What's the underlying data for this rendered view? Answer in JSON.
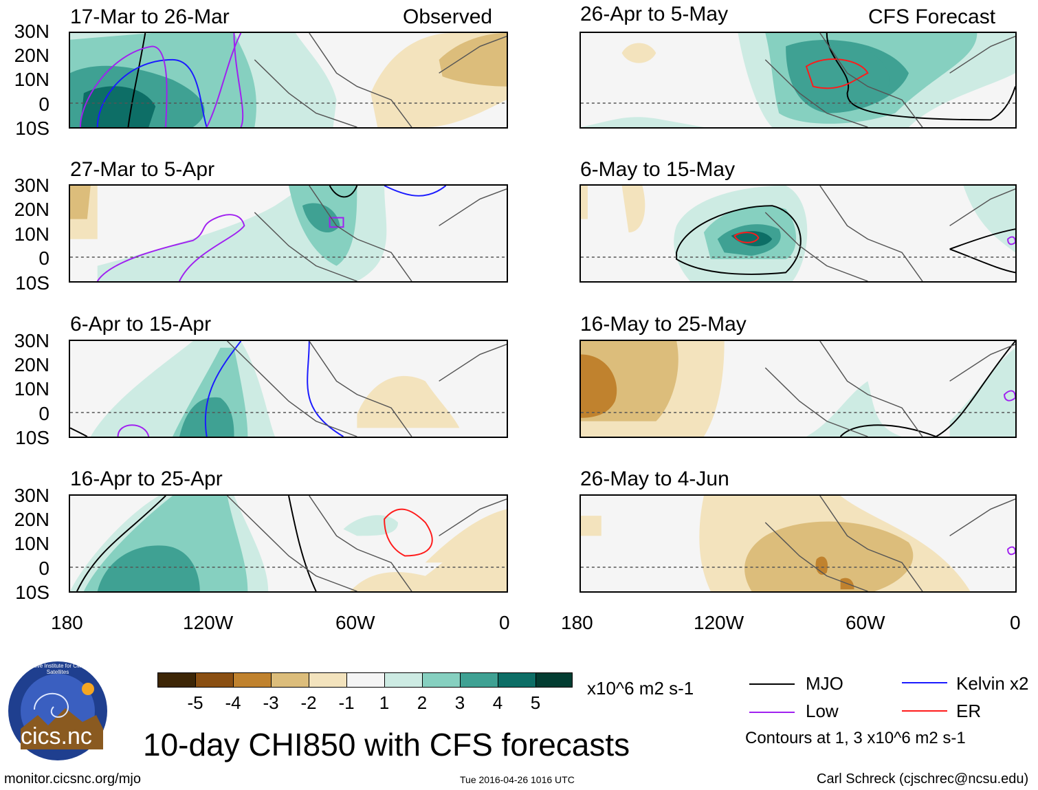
{
  "main_title": "10-day CHI850 with CFS forecasts",
  "observed_label": "Observed",
  "forecast_label": "CFS Forecast",
  "lat_labels": [
    "30N",
    "20N",
    "10N",
    "0",
    "10S"
  ],
  "lon_labels": [
    "180",
    "120W",
    "60W",
    "0"
  ],
  "panels_left": [
    {
      "title": "17-Mar to 26-Mar"
    },
    {
      "title": "27-Mar to 5-Apr"
    },
    {
      "title": "6-Apr to 15-Apr"
    },
    {
      "title": "16-Apr to 25-Apr"
    }
  ],
  "panels_right": [
    {
      "title": "26-Apr to 5-May"
    },
    {
      "title": "6-May to 15-May"
    },
    {
      "title": "16-May to 25-May"
    },
    {
      "title": "26-May to 4-Jun"
    }
  ],
  "colorbar": {
    "colors": [
      "#3d2606",
      "#8a4f12",
      "#c0822e",
      "#dcbd7b",
      "#f3e3bd",
      "#f5f5f5",
      "#cdebe3",
      "#86d0c0",
      "#3fa193",
      "#0d6e66",
      "#033d32"
    ],
    "labels": [
      "-5",
      "-4",
      "-3",
      "-2",
      "-1",
      "1",
      "2",
      "3",
      "4",
      "5"
    ],
    "units": "x10^6 m2 s-1"
  },
  "legend": {
    "items": [
      {
        "label": "MJO",
        "color": "#000000"
      },
      {
        "label": "Kelvin x2",
        "color": "#1a1aff"
      },
      {
        "label": "Low",
        "color": "#a020f0"
      },
      {
        "label": "ER",
        "color": "#ff1a1a"
      }
    ],
    "note": "Contours at 1, 3 x10^6 m2 s-1"
  },
  "logo_text": "cics.nc",
  "logo_ring_text": "Cooperative Institute for Climate and Satellites",
  "footer_url": "monitor.cicsnc.org/mjo",
  "footer_timestamp": "Tue 2016-04-26 1016 UTC",
  "footer_author": "Carl Schreck (cjschrec@ncsu.edu)"
}
